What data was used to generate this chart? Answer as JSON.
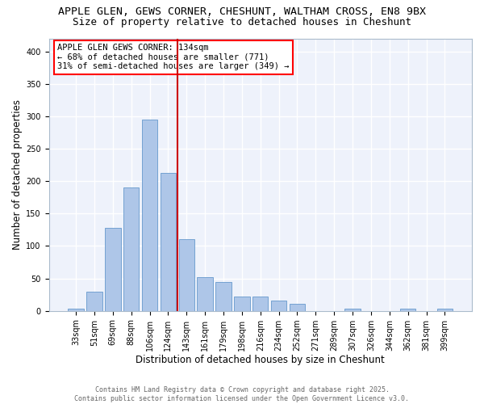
{
  "title1": "APPLE GLEN, GEWS CORNER, CHESHUNT, WALTHAM CROSS, EN8 9BX",
  "title2": "Size of property relative to detached houses in Cheshunt",
  "xlabel": "Distribution of detached houses by size in Cheshunt",
  "ylabel": "Number of detached properties",
  "bar_labels": [
    "33sqm",
    "51sqm",
    "69sqm",
    "88sqm",
    "106sqm",
    "124sqm",
    "143sqm",
    "161sqm",
    "179sqm",
    "198sqm",
    "216sqm",
    "234sqm",
    "252sqm",
    "271sqm",
    "289sqm",
    "307sqm",
    "326sqm",
    "344sqm",
    "362sqm",
    "381sqm",
    "399sqm"
  ],
  "bar_values": [
    3,
    30,
    128,
    190,
    295,
    213,
    110,
    52,
    45,
    22,
    22,
    16,
    11,
    0,
    0,
    3,
    0,
    0,
    3,
    0,
    3
  ],
  "bar_color": "#aec6e8",
  "bar_edge_color": "#6699cc",
  "vline_x_index": 5.5,
  "vline_color": "#cc0000",
  "annotation_text": "APPLE GLEN GEWS CORNER: 134sqm\n← 68% of detached houses are smaller (771)\n31% of semi-detached houses are larger (349) →",
  "annotation_box_color": "white",
  "annotation_box_edge_color": "red",
  "ylim": [
    0,
    420
  ],
  "yticks": [
    0,
    50,
    100,
    150,
    200,
    250,
    300,
    350,
    400
  ],
  "background_color": "#eef2fb",
  "grid_color": "white",
  "footer_text": "Contains HM Land Registry data © Crown copyright and database right 2025.\nContains public sector information licensed under the Open Government Licence v3.0.",
  "title_fontsize": 9.5,
  "subtitle_fontsize": 9,
  "tick_fontsize": 7,
  "ylabel_fontsize": 8.5,
  "xlabel_fontsize": 8.5,
  "annotation_fontsize": 7.5,
  "footer_fontsize": 6
}
